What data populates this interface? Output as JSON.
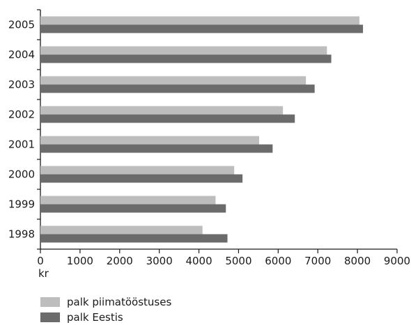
{
  "chart_data": {
    "type": "bar",
    "orientation": "horizontal",
    "categories": [
      "2005",
      "2004",
      "2003",
      "2002",
      "2001",
      "2000",
      "1999",
      "1998"
    ],
    "series": [
      {
        "name": "palk piimatööstuses",
        "color": "#bdbdbd",
        "values": [
          8050,
          7230,
          6700,
          6120,
          5520,
          4890,
          4420,
          4090
        ]
      },
      {
        "name": "palk Eestis",
        "color": "#6b6b6b",
        "values": [
          8140,
          7340,
          6920,
          6420,
          5860,
          5100,
          4680,
          4720
        ]
      }
    ],
    "xlabel": "kr",
    "ylabel": "",
    "title": "",
    "xlim": [
      0,
      9000
    ],
    "xticks": [
      "0",
      "1000",
      "2000",
      "3000",
      "4000",
      "5000",
      "6000",
      "7000",
      "8000",
      "9000"
    ],
    "grid": false,
    "legend_position": "bottom-left"
  }
}
